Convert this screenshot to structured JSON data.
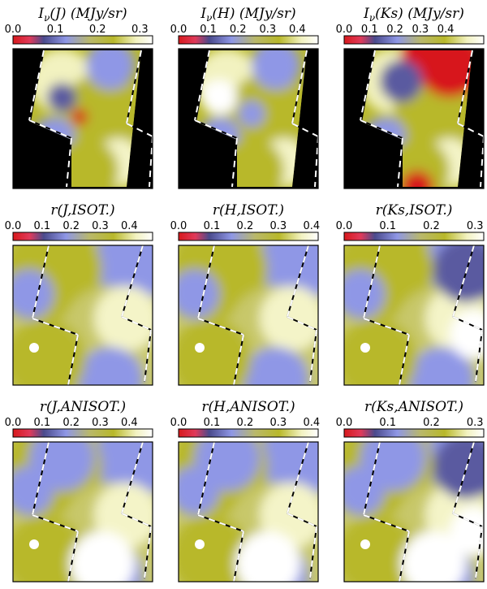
{
  "chart_data": [
    {
      "type": "heatmap",
      "title_main": "I",
      "title_sub": "ν",
      "title_rest": "(J)  (MJy/sr)",
      "colorbar": {
        "ticks": [
          "0.0",
          "0.1",
          "0.2",
          "0.3"
        ],
        "range": [
          0.0,
          0.33
        ]
      },
      "footprint": "dashed-white-black"
    },
    {
      "type": "heatmap",
      "title_main": "I",
      "title_sub": "ν",
      "title_rest": "(H)  (MJy/sr)",
      "colorbar": {
        "ticks": [
          "0.0",
          "0.1",
          "0.2",
          "0.3",
          "0.4"
        ],
        "range": [
          0.0,
          0.47
        ]
      },
      "footprint": "dashed-white-black"
    },
    {
      "type": "heatmap",
      "title_main": "I",
      "title_sub": "ν",
      "title_rest": "(Ks)  (MJy/sr)",
      "colorbar": {
        "ticks": [
          "0.0",
          "0.1",
          "0.2",
          "0.3",
          "0.4"
        ],
        "range": [
          0.0,
          0.55
        ]
      },
      "footprint": "dashed-white-black"
    },
    {
      "type": "heatmap",
      "title_main": "r(J,ISOT.)",
      "title_sub": "",
      "title_rest": "",
      "colorbar": {
        "ticks": [
          "0.0",
          "0.1",
          "0.2",
          "0.3",
          "0.4"
        ],
        "range": [
          0.0,
          0.48
        ]
      },
      "footprint": "dashed-white-black"
    },
    {
      "type": "heatmap",
      "title_main": "r(H,ISOT.)",
      "title_sub": "",
      "title_rest": "",
      "colorbar": {
        "ticks": [
          "0.0",
          "0.1",
          "0.2",
          "0.3",
          "0.4"
        ],
        "range": [
          0.0,
          0.42
        ]
      },
      "footprint": "dashed-white-black"
    },
    {
      "type": "heatmap",
      "title_main": "r(Ks,ISOT.)",
      "title_sub": "",
      "title_rest": "",
      "colorbar": {
        "ticks": [
          "0.0",
          "0.1",
          "0.2",
          "0.3"
        ],
        "range": [
          0.0,
          0.32
        ]
      },
      "footprint": "dashed-white-black"
    },
    {
      "type": "heatmap",
      "title_main": "r(J,ANISOT.)",
      "title_sub": "",
      "title_rest": "",
      "colorbar": {
        "ticks": [
          "0.0",
          "0.1",
          "0.2",
          "0.3",
          "0.4"
        ],
        "range": [
          0.0,
          0.48
        ]
      },
      "footprint": "dashed-white-black"
    },
    {
      "type": "heatmap",
      "title_main": "r(H,ANISOT.)",
      "title_sub": "",
      "title_rest": "",
      "colorbar": {
        "ticks": [
          "0.0",
          "0.1",
          "0.2",
          "0.3",
          "0.4"
        ],
        "range": [
          0.0,
          0.42
        ]
      },
      "footprint": "dashed-white-black"
    },
    {
      "type": "heatmap",
      "title_main": "r(Ks,ANISOT.)",
      "title_sub": "",
      "title_rest": "",
      "colorbar": {
        "ticks": [
          "0.0",
          "0.1",
          "0.2",
          "0.3"
        ],
        "range": [
          0.0,
          0.32
        ]
      },
      "footprint": "dashed-white-black"
    }
  ],
  "colormap": [
    "#d7191c",
    "#5a5aa0",
    "#8f97e6",
    "#c8c86a",
    "#b8b82a",
    "#f4f4c8",
    "#ffffff"
  ],
  "masked_color": "#000000"
}
